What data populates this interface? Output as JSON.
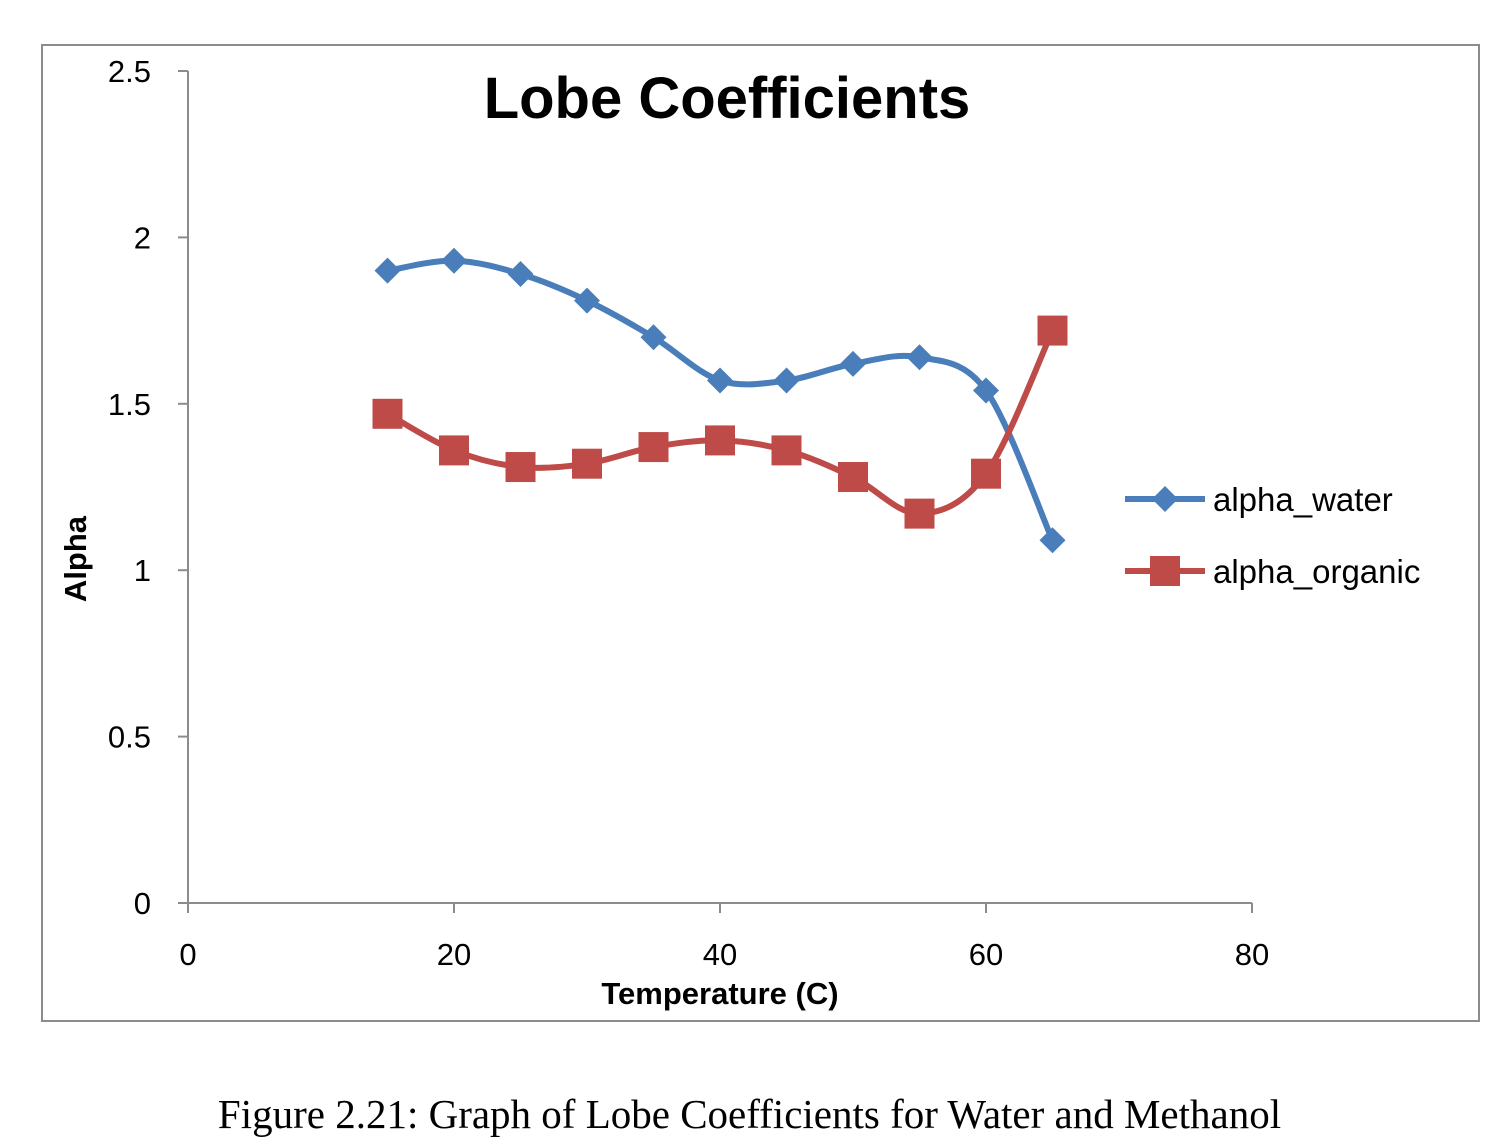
{
  "chart_data": {
    "type": "line",
    "title": "Lobe Coefficients",
    "xlabel": "Temperature (C)",
    "ylabel": "Alpha",
    "xlim": [
      0,
      80
    ],
    "ylim": [
      0,
      2.5
    ],
    "x_ticks": [
      "0",
      "20",
      "40",
      "60",
      "80"
    ],
    "y_ticks": [
      "0",
      "0.5",
      "1",
      "1.5",
      "2",
      "2.5"
    ],
    "x_tick_values": [
      0,
      20,
      40,
      60,
      80
    ],
    "y_tick_values": [
      0,
      0.5,
      1,
      1.5,
      2,
      2.5
    ],
    "grid": false,
    "smooth": true,
    "legend_position": "right",
    "series": [
      {
        "name": "alpha_water",
        "color": "#4a7ebb",
        "marker": "diamond",
        "x": [
          15,
          20,
          25,
          30,
          35,
          40,
          45,
          50,
          55,
          60,
          65
        ],
        "y": [
          1.9,
          1.93,
          1.89,
          1.81,
          1.7,
          1.57,
          1.57,
          1.62,
          1.64,
          1.54,
          1.09
        ]
      },
      {
        "name": "alpha_organic",
        "color": "#be4b48",
        "marker": "square",
        "x": [
          15,
          20,
          25,
          30,
          35,
          40,
          45,
          50,
          55,
          60,
          65
        ],
        "y": [
          1.47,
          1.36,
          1.31,
          1.32,
          1.37,
          1.39,
          1.36,
          1.28,
          1.17,
          1.29,
          1.72
        ]
      }
    ]
  },
  "caption": "Figure 2.21: Graph of Lobe Coefficients for Water and Methanol"
}
